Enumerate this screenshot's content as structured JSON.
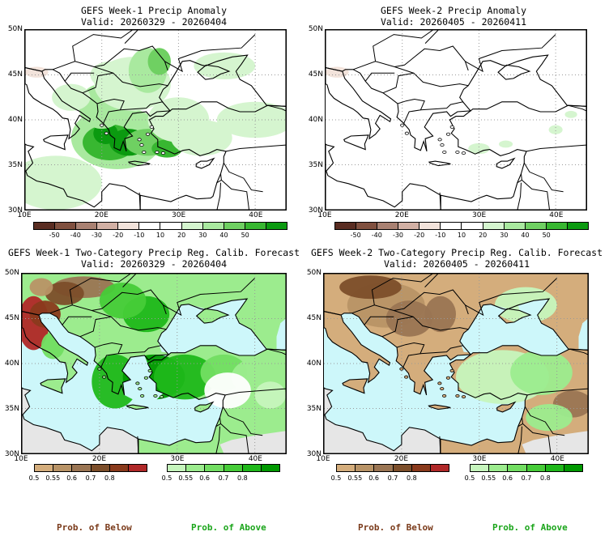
{
  "panels": [
    {
      "line1": "GEFS Week-1 Precip Anomaly",
      "line2": "Valid: 20260329 - 20260404"
    },
    {
      "line1": "GEFS Week-2 Precip Anomaly",
      "line2": "Valid: 20260405 - 20260411"
    },
    {
      "line1": "GEFS Week-1 Two-Category Precip Reg. Calib. Forecast",
      "line2": "Valid: 20260329 - 20260404"
    },
    {
      "line1": "GEFS Week-2 Two-Category Precip Reg. Calib. Forecast",
      "line2": "Valid: 20260405 - 20260411"
    }
  ],
  "axes": {
    "lat_labels": [
      "50N",
      "45N",
      "40N",
      "35N",
      "30N"
    ],
    "lon_labels": [
      "10E",
      "20E",
      "30E",
      "40E"
    ]
  },
  "anomaly_colorbar": {
    "labels": [
      "-50",
      "-40",
      "-30",
      "-20",
      "-10",
      "10",
      "20",
      "30",
      "40",
      "50"
    ],
    "colors": [
      "#5a2d22",
      "#80503f",
      "#a98172",
      "#d2b0a4",
      "#f2e3db",
      "#ffffff",
      "#ffffff",
      "#d5f5cf",
      "#a9e99f",
      "#6fd062",
      "#38b731",
      "#0b9a10"
    ]
  },
  "prob_colorbars": {
    "below": {
      "labels": [
        "0.5",
        "0.55",
        "0.6",
        "0.7",
        "0.8"
      ],
      "colors": [
        "#d4ad7c",
        "#b89366",
        "#9a7553",
        "#7c4e2a",
        "#8a3a1c",
        "#b02828"
      ]
    },
    "above": {
      "labels": [
        "0.5",
        "0.55",
        "0.6",
        "0.7",
        "0.8"
      ],
      "colors": [
        "#c6f5bd",
        "#9cec8e",
        "#72de62",
        "#46cc38",
        "#1fb81a",
        "#009900"
      ]
    }
  },
  "footer": {
    "below": "Prob. of Below",
    "above": "Prob. of Above"
  },
  "colors": {
    "sea": "#cdf7fa",
    "outside": "#e6e6e6",
    "coast": "#000000",
    "grid": "#999999",
    "below_text": "#7a3a1a",
    "above_text": "#1aa51a"
  }
}
